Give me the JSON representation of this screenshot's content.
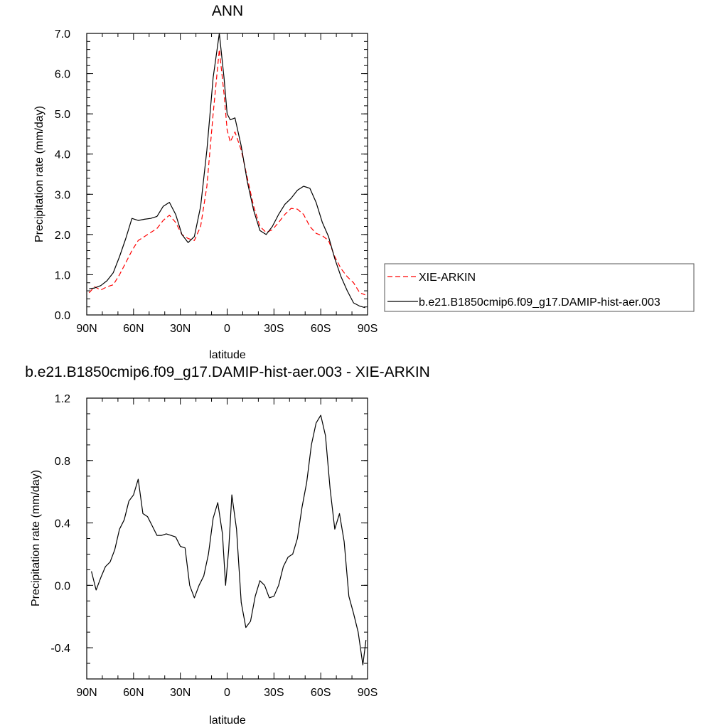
{
  "chart_data": [
    {
      "type": "line",
      "title": "ANN",
      "xlabel": "latitude",
      "ylabel": "Precipitation rate (mm/day)",
      "xlim": [
        90,
        -90
      ],
      "ylim": [
        0,
        7
      ],
      "x_ticks": [
        {
          "value": 90,
          "label": "90N"
        },
        {
          "value": 60,
          "label": "60N"
        },
        {
          "value": 30,
          "label": "30N"
        },
        {
          "value": 0,
          "label": "0"
        },
        {
          "value": -30,
          "label": "30S"
        },
        {
          "value": -60,
          "label": "60S"
        },
        {
          "value": -90,
          "label": "90S"
        }
      ],
      "y_ticks": [
        {
          "value": 0,
          "label": "0.0"
        },
        {
          "value": 1,
          "label": "1.0"
        },
        {
          "value": 2,
          "label": "2.0"
        },
        {
          "value": 3,
          "label": "3.0"
        },
        {
          "value": 4,
          "label": "4.0"
        },
        {
          "value": 5,
          "label": "5.0"
        },
        {
          "value": 6,
          "label": "6.0"
        },
        {
          "value": 7,
          "label": "7.0"
        }
      ],
      "legend_position": "right",
      "series": [
        {
          "name": "XIE-ARKIN",
          "color": "#ff0000",
          "dash": "dashed",
          "x": [
            88.5,
            85,
            81,
            77,
            73,
            69,
            65,
            61,
            57,
            53,
            49,
            45,
            41,
            37,
            33,
            29,
            25,
            21,
            17,
            13,
            9,
            5,
            2,
            0,
            -2,
            -5,
            -9,
            -13,
            -17,
            -21,
            -25,
            -29,
            -33,
            -37,
            -41,
            -45,
            -49,
            -53,
            -57,
            -61,
            -65,
            -69,
            -73,
            -77,
            -81,
            -85,
            -88.5
          ],
          "y": [
            0.55,
            0.7,
            0.62,
            0.7,
            0.75,
            1.0,
            1.3,
            1.6,
            1.85,
            1.95,
            2.05,
            2.15,
            2.35,
            2.48,
            2.3,
            2.0,
            1.9,
            1.85,
            2.2,
            3.2,
            5.0,
            6.6,
            5.5,
            4.6,
            4.3,
            4.55,
            4.1,
            3.4,
            2.7,
            2.2,
            2.05,
            2.12,
            2.3,
            2.5,
            2.65,
            2.63,
            2.5,
            2.2,
            2.03,
            1.97,
            1.85,
            1.45,
            1.15,
            0.95,
            0.8,
            0.55,
            0.5
          ]
        },
        {
          "name": "b.e21.B1850cmip6.f09_g17.DAMIP-hist-aer.003",
          "color": "#000000",
          "dash": "solid",
          "x": [
            88.5,
            85,
            81,
            77,
            73,
            69,
            65,
            61,
            57,
            53,
            49,
            45,
            41,
            37,
            33,
            29,
            25,
            21,
            17,
            13,
            9,
            5,
            2,
            0,
            -2,
            -5,
            -9,
            -13,
            -17,
            -21,
            -25,
            -29,
            -33,
            -37,
            -41,
            -45,
            -49,
            -53,
            -57,
            -61,
            -65,
            -69,
            -73,
            -77,
            -81,
            -85,
            -88.5
          ],
          "y": [
            0.65,
            0.67,
            0.73,
            0.85,
            1.05,
            1.45,
            1.9,
            2.4,
            2.35,
            2.38,
            2.4,
            2.45,
            2.7,
            2.8,
            2.5,
            2.0,
            1.8,
            1.95,
            2.7,
            4.1,
            5.9,
            7.0,
            5.9,
            5.0,
            4.85,
            4.9,
            4.2,
            3.3,
            2.6,
            2.1,
            2.0,
            2.2,
            2.5,
            2.75,
            2.9,
            3.1,
            3.2,
            3.15,
            2.8,
            2.3,
            1.95,
            1.4,
            0.95,
            0.6,
            0.3,
            0.22,
            0.18
          ]
        }
      ]
    },
    {
      "type": "line",
      "title": "b.e21.B1850cmip6.f09_g17.DAMIP-hist-aer.003 - XIE-ARKIN",
      "xlabel": "latitude",
      "ylabel": "Precipitation rate (mm/day)",
      "xlim": [
        90,
        -90
      ],
      "ylim": [
        -0.6,
        1.2
      ],
      "x_ticks": [
        {
          "value": 90,
          "label": "90N"
        },
        {
          "value": 60,
          "label": "60N"
        },
        {
          "value": 30,
          "label": "30N"
        },
        {
          "value": 0,
          "label": "0"
        },
        {
          "value": -30,
          "label": "30S"
        },
        {
          "value": -60,
          "label": "60S"
        },
        {
          "value": -90,
          "label": "90S"
        }
      ],
      "y_ticks": [
        {
          "value": -0.4,
          "label": "-0.4"
        },
        {
          "value": 0,
          "label": "0.0"
        },
        {
          "value": 0.4,
          "label": "0.4"
        },
        {
          "value": 0.8,
          "label": "0.8"
        },
        {
          "value": 1.2,
          "label": "1.2"
        }
      ],
      "series": [
        {
          "color": "#000000",
          "dash": "solid",
          "x": [
            87,
            84,
            81,
            78,
            75,
            72,
            69,
            66,
            63,
            60,
            57,
            54,
            51,
            48,
            45,
            42,
            39,
            36,
            33,
            30,
            27,
            24,
            21,
            18,
            15,
            12,
            9,
            6,
            3,
            1,
            -1,
            -3,
            -6,
            -9,
            -12,
            -15,
            -18,
            -21,
            -24,
            -27,
            -30,
            -33,
            -36,
            -39,
            -42,
            -45,
            -48,
            -51,
            -54,
            -57,
            -60,
            -63,
            -66,
            -69,
            -72,
            -75,
            -78,
            -81,
            -84,
            -87,
            -89
          ],
          "y": [
            0.09,
            -0.03,
            0.05,
            0.12,
            0.15,
            0.23,
            0.36,
            0.42,
            0.54,
            0.58,
            0.68,
            0.46,
            0.44,
            0.38,
            0.32,
            0.32,
            0.33,
            0.32,
            0.31,
            0.25,
            0.24,
            0.0,
            -0.08,
            0.0,
            0.06,
            0.2,
            0.43,
            0.53,
            0.33,
            0.0,
            0.23,
            0.58,
            0.36,
            -0.11,
            -0.27,
            -0.23,
            -0.07,
            0.03,
            0.0,
            -0.08,
            -0.07,
            0.0,
            0.12,
            0.18,
            0.2,
            0.3,
            0.5,
            0.66,
            0.9,
            1.04,
            1.09,
            0.96,
            0.62,
            0.36,
            0.46,
            0.28,
            -0.07,
            -0.18,
            -0.3,
            -0.51,
            -0.35
          ]
        }
      ]
    }
  ]
}
